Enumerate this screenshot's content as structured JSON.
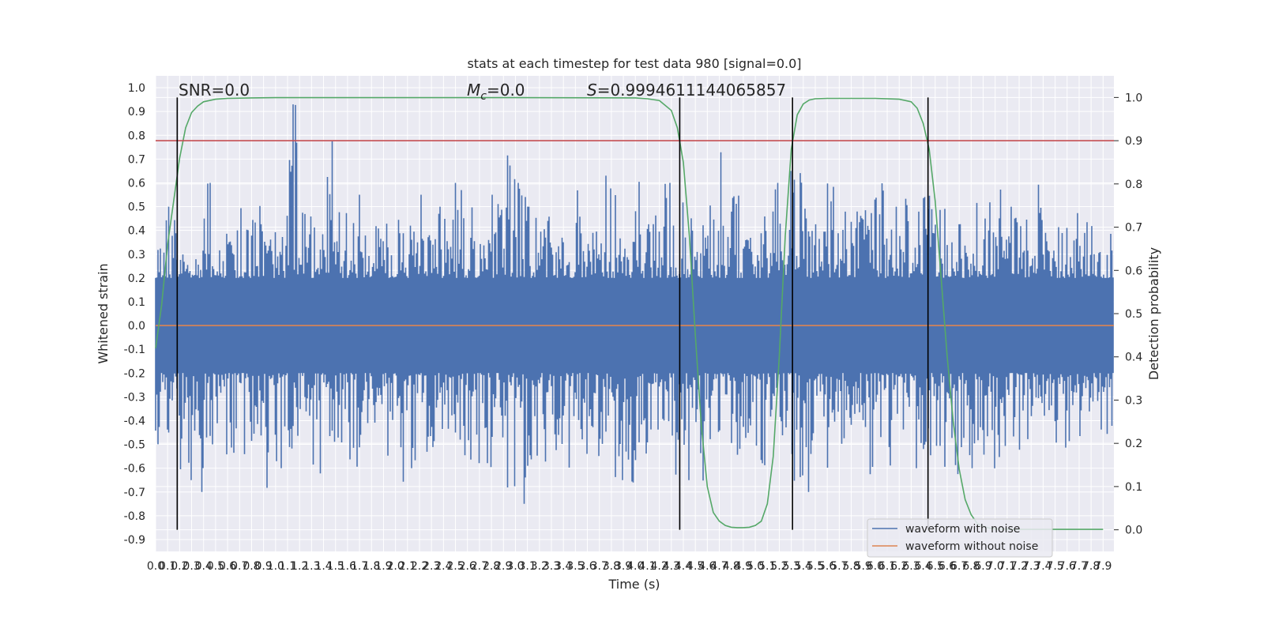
{
  "chart_data": {
    "type": "line",
    "title": "stats at each timestep for test data 980 [signal=0.0]",
    "xlabel": "Time (s)",
    "ylabel": "Whitened strain",
    "y2label": "Detection probability",
    "xlim": [
      0.0,
      7.99
    ],
    "ylim": [
      -0.95,
      1.05
    ],
    "y2lim": [
      -0.05,
      1.05
    ],
    "x_ticks": [
      "0.0",
      "0.1",
      "0.2",
      "0.3",
      "0.4",
      "0.5",
      "0.6",
      "0.7",
      "0.8",
      "0.9",
      "1.0",
      "1.1",
      "1.2",
      "1.3",
      "1.4",
      "1.5",
      "1.6",
      "1.7",
      "1.8",
      "1.9",
      "2.0",
      "2.1",
      "2.2",
      "2.3",
      "2.4",
      "2.5",
      "2.6",
      "2.7",
      "2.8",
      "2.9",
      "3.0",
      "3.1",
      "3.2",
      "3.3",
      "3.4",
      "3.5",
      "3.6",
      "3.7",
      "3.8",
      "3.9",
      "4.0",
      "4.1",
      "4.2",
      "4.3",
      "4.4",
      "4.5",
      "4.6",
      "4.7",
      "4.8",
      "4.9",
      "5.0",
      "5.1",
      "5.2",
      "5.3",
      "5.4",
      "5.5",
      "5.6",
      "5.7",
      "5.8",
      "5.9",
      "6.0",
      "6.1",
      "6.2",
      "6.3",
      "6.4",
      "6.5",
      "6.6",
      "6.7",
      "6.8",
      "6.9",
      "7.0",
      "7.1",
      "7.2",
      "7.3",
      "7.4",
      "7.5",
      "7.6",
      "7.7",
      "7.8",
      "7.9"
    ],
    "y_ticks": [
      "1.0",
      "0.9",
      "0.8",
      "0.7",
      "0.6",
      "0.5",
      "0.4",
      "0.3",
      "0.2",
      "0.1",
      "0.0",
      "-0.1",
      "-0.2",
      "-0.3",
      "-0.4",
      "-0.5",
      "-0.6",
      "-0.7",
      "-0.8",
      "-0.9"
    ],
    "y_tick_values": [
      1.0,
      0.9,
      0.8,
      0.7,
      0.6,
      0.5,
      0.4,
      0.3,
      0.2,
      0.1,
      0.0,
      -0.1,
      -0.2,
      -0.3,
      -0.4,
      -0.5,
      -0.6,
      -0.7,
      -0.8,
      -0.9
    ],
    "y2_ticks": [
      "1.0",
      "0.9",
      "0.8",
      "0.7",
      "0.6",
      "0.5",
      "0.4",
      "0.3",
      "0.2",
      "0.1",
      "0.0"
    ],
    "y2_tick_values": [
      1.0,
      0.9,
      0.8,
      0.7,
      0.6,
      0.5,
      0.4,
      0.3,
      0.2,
      0.1,
      0.0
    ],
    "annotations": {
      "snr": "SNR=0.0",
      "mc_symbol": "M",
      "mc_sub": "c",
      "mc_value": "=0.0",
      "s_symbol": "S",
      "s_value": "=0.9994611144065857"
    },
    "legend": {
      "placement": "lower right",
      "items": [
        "waveform with noise",
        "waveform without noise"
      ]
    },
    "noise_envelope": {
      "description_values_upper": [
        0.45,
        0.5,
        0.3,
        0.35,
        0.6,
        0.45,
        0.4,
        0.5,
        0.7,
        0.45,
        0.55,
        1.0,
        0.5,
        0.45,
        0.9,
        0.5,
        0.45,
        0.55,
        0.5,
        0.45,
        0.5,
        0.45,
        0.55,
        0.5,
        0.45,
        0.6,
        0.5,
        0.45,
        0.55,
        0.74,
        0.6,
        0.5,
        0.55,
        0.45,
        0.5,
        0.6,
        0.55,
        0.63,
        0.55,
        0.5,
        0.7,
        0.5,
        0.6,
        0.5,
        0.55,
        0.5,
        0.55,
        0.85,
        0.55,
        0.45,
        0.5,
        0.6,
        0.5,
        0.65,
        0.55,
        0.5,
        0.6,
        0.55,
        0.5,
        0.6,
        0.85,
        0.5,
        0.55,
        0.5,
        0.6,
        0.5,
        0.55,
        0.5,
        0.6,
        0.55,
        0.73,
        0.5,
        0.55,
        0.6,
        0.5,
        0.45,
        0.5,
        0.5,
        0.45,
        0.4
      ],
      "description_values_lower": [
        -0.5,
        -0.45,
        -0.65,
        -0.7,
        -0.5,
        -0.6,
        -0.55,
        -0.65,
        -0.5,
        -0.8,
        -0.6,
        -0.55,
        -0.5,
        -0.65,
        -0.55,
        -0.5,
        -0.6,
        -0.55,
        -0.5,
        -0.55,
        -0.73,
        -0.6,
        -0.55,
        -0.6,
        -0.5,
        -0.55,
        -0.6,
        -0.65,
        -0.55,
        -0.7,
        -0.8,
        -0.7,
        -0.6,
        -0.55,
        -0.6,
        -0.55,
        -0.6,
        -0.55,
        -0.65,
        -0.79,
        -0.6,
        -0.55,
        -0.5,
        -0.7,
        -0.65,
        -0.75,
        -0.6,
        -0.5,
        -0.55,
        -0.5,
        -0.6,
        -0.55,
        -0.5,
        -0.75,
        -0.7,
        -0.65,
        -0.6,
        -0.55,
        -0.6,
        -0.65,
        -0.55,
        -0.6,
        -0.5,
        -0.6,
        -0.55,
        -0.6,
        -0.65,
        -0.55,
        -0.6,
        -0.6,
        -0.65,
        -0.5,
        -0.6,
        -0.55,
        -0.5,
        -0.55,
        -0.5,
        -0.5,
        -0.45,
        -0.5
      ]
    },
    "series": [
      {
        "name": "waveform with noise",
        "color": "#4c72b0",
        "kind": "noise"
      },
      {
        "name": "waveform without noise",
        "color": "#dd8452",
        "x": [
          0.0,
          7.99
        ],
        "y": [
          0.0,
          0.0
        ]
      },
      {
        "color": "#55a868",
        "axis": "right",
        "x": [
          0.0,
          0.05,
          0.1,
          0.15,
          0.2,
          0.25,
          0.3,
          0.35,
          0.4,
          0.5,
          0.6,
          0.8,
          1.0,
          1.5,
          2.0,
          3.0,
          4.0,
          4.1,
          4.2,
          4.3,
          4.35,
          4.4,
          4.45,
          4.5,
          4.55,
          4.6,
          4.65,
          4.7,
          4.75,
          4.8,
          4.85,
          4.9,
          4.95,
          5.0,
          5.05,
          5.1,
          5.15,
          5.2,
          5.25,
          5.3,
          5.35,
          5.4,
          5.45,
          5.5,
          5.6,
          5.7,
          5.8,
          6.0,
          6.2,
          6.3,
          6.35,
          6.4,
          6.45,
          6.5,
          6.55,
          6.6,
          6.65,
          6.7,
          6.75,
          6.8,
          6.85,
          6.9,
          6.95,
          7.0,
          7.2,
          7.5,
          7.9
        ],
        "y": [
          0.42,
          0.52,
          0.66,
          0.76,
          0.86,
          0.93,
          0.965,
          0.98,
          0.99,
          0.996,
          0.998,
          0.999,
          0.9995,
          0.9995,
          0.9995,
          0.9995,
          0.999,
          0.997,
          0.993,
          0.97,
          0.93,
          0.85,
          0.68,
          0.45,
          0.24,
          0.1,
          0.04,
          0.02,
          0.01,
          0.006,
          0.005,
          0.005,
          0.006,
          0.01,
          0.02,
          0.06,
          0.17,
          0.4,
          0.68,
          0.88,
          0.96,
          0.985,
          0.994,
          0.997,
          0.998,
          0.998,
          0.998,
          0.998,
          0.996,
          0.99,
          0.975,
          0.94,
          0.88,
          0.76,
          0.58,
          0.4,
          0.25,
          0.14,
          0.07,
          0.035,
          0.015,
          0.008,
          0.004,
          0.002,
          0.001,
          0.001,
          0.001
        ]
      },
      {
        "color": "#c44e52",
        "axis": "right",
        "x": [
          0.0,
          7.99
        ],
        "y": [
          0.9,
          0.9
        ]
      }
    ],
    "vlines": [
      0.18,
      4.37,
      5.31,
      6.44
    ],
    "grid": true
  }
}
